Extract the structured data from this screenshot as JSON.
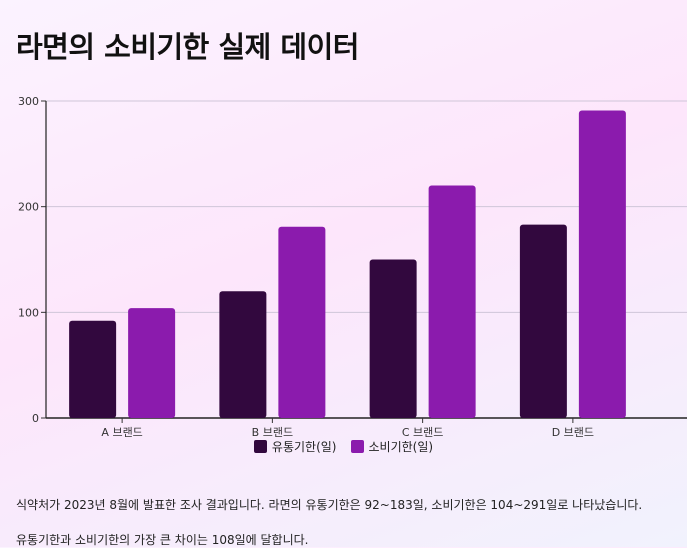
{
  "page": {
    "title": "라면의 소비기한 실제 데이터"
  },
  "chart_data": {
    "type": "bar",
    "title": "라면의 소비기한 실제 데이터",
    "xlabel": "",
    "ylabel": "",
    "categories": [
      "A 브랜드",
      "B 브랜드",
      "C 브랜드",
      "D 브랜드"
    ],
    "series": [
      {
        "name": "유통기한(일)",
        "values": [
          92,
          120,
          150,
          183
        ],
        "color": "#32083e"
      },
      {
        "name": "소비기한(일)",
        "values": [
          104,
          181,
          220,
          291
        ],
        "color": "#8b1bad"
      }
    ],
    "ylim": [
      0,
      300
    ],
    "yticks": [
      0,
      100,
      200,
      300
    ],
    "grid": true,
    "legend": "bottom-center"
  },
  "notes": [
    "식약처가 2023년 8월에 발표한 조사 결과입니다. 라면의 유통기한은 92~183일, 소비기한은 104~291일로 나타났습니다.",
    "유통기한과 소비기한의 가장 큰 차이는 108일에 달합니다."
  ]
}
